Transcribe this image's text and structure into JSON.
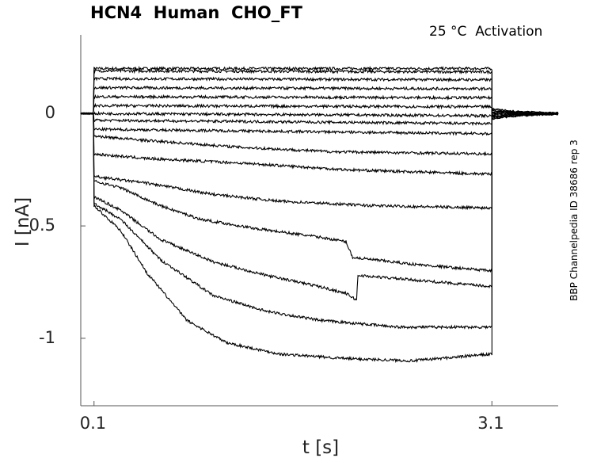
{
  "chart_data": {
    "type": "line",
    "title": "HCN4  Human  CHO_FT",
    "annotation": "25 °C  Activation",
    "side_label": "BBP Channelpedia ID 38686 rep 3",
    "xlabel": "t [s]",
    "ylabel": "I [nA]",
    "xlim": [
      -0.0,
      3.6
    ],
    "ylim": [
      -1.3,
      0.35
    ],
    "xticks": [
      0.1,
      3.1
    ],
    "xtick_labels": [
      "0.1",
      "3.1"
    ],
    "yticks": [
      0,
      -0.5,
      -1
    ],
    "ytick_labels": [
      "0",
      "-0.5",
      "-1"
    ],
    "step_start": 0.1,
    "step_end": 3.1,
    "grid": false,
    "line_color": "#000000",
    "series": [
      {
        "points": [
          [
            0.1,
            0.2
          ],
          [
            3.1,
            0.2
          ]
        ]
      },
      {
        "points": [
          [
            0.1,
            0.19
          ],
          [
            3.1,
            0.185
          ]
        ]
      },
      {
        "points": [
          [
            0.1,
            0.155
          ],
          [
            3.1,
            0.15
          ]
        ]
      },
      {
        "points": [
          [
            0.1,
            0.115
          ],
          [
            3.1,
            0.11
          ]
        ]
      },
      {
        "points": [
          [
            0.1,
            0.075
          ],
          [
            3.1,
            0.07
          ]
        ]
      },
      {
        "points": [
          [
            0.1,
            0.035
          ],
          [
            3.1,
            0.03
          ]
        ]
      },
      {
        "points": [
          [
            0.1,
            0.0
          ],
          [
            3.1,
            -0.01
          ]
        ]
      },
      {
        "points": [
          [
            0.1,
            -0.03
          ],
          [
            3.1,
            -0.045
          ]
        ]
      },
      {
        "points": [
          [
            0.1,
            -0.07
          ],
          [
            3.1,
            -0.09
          ]
        ]
      },
      {
        "points": [
          [
            0.1,
            -0.1
          ],
          [
            0.5,
            -0.12
          ],
          [
            1.2,
            -0.15
          ],
          [
            1.9,
            -0.17
          ],
          [
            3.1,
            -0.18
          ]
        ]
      },
      {
        "points": [
          [
            0.1,
            -0.18
          ],
          [
            0.5,
            -0.2
          ],
          [
            1.2,
            -0.22
          ],
          [
            2.0,
            -0.25
          ],
          [
            3.1,
            -0.27
          ]
        ]
      },
      {
        "points": [
          [
            0.1,
            -0.28
          ],
          [
            0.5,
            -0.31
          ],
          [
            1.0,
            -0.36
          ],
          [
            1.5,
            -0.39
          ],
          [
            2.2,
            -0.41
          ],
          [
            3.1,
            -0.42
          ]
        ]
      },
      {
        "points": [
          [
            0.1,
            -0.3
          ],
          [
            0.3,
            -0.33
          ],
          [
            0.6,
            -0.41
          ],
          [
            0.9,
            -0.47
          ],
          [
            1.3,
            -0.51
          ],
          [
            1.8,
            -0.55
          ],
          [
            2.0,
            -0.57
          ],
          [
            2.05,
            -0.64
          ],
          [
            2.5,
            -0.67
          ],
          [
            3.1,
            -0.7
          ]
        ]
      },
      {
        "points": [
          [
            0.1,
            -0.37
          ],
          [
            0.3,
            -0.43
          ],
          [
            0.6,
            -0.56
          ],
          [
            1.0,
            -0.66
          ],
          [
            1.4,
            -0.72
          ],
          [
            1.8,
            -0.77
          ],
          [
            2.0,
            -0.8
          ],
          [
            2.08,
            -0.83
          ],
          [
            2.09,
            -0.72
          ],
          [
            2.5,
            -0.74
          ],
          [
            3.1,
            -0.77
          ]
        ]
      },
      {
        "points": [
          [
            0.1,
            -0.4
          ],
          [
            0.3,
            -0.47
          ],
          [
            0.6,
            -0.65
          ],
          [
            1.0,
            -0.81
          ],
          [
            1.4,
            -0.88
          ],
          [
            1.8,
            -0.92
          ],
          [
            2.4,
            -0.95
          ],
          [
            3.1,
            -0.95
          ]
        ]
      },
      {
        "points": [
          [
            0.1,
            -0.41
          ],
          [
            0.3,
            -0.52
          ],
          [
            0.5,
            -0.71
          ],
          [
            0.8,
            -0.92
          ],
          [
            1.1,
            -1.02
          ],
          [
            1.5,
            -1.07
          ],
          [
            2.0,
            -1.09
          ],
          [
            2.5,
            -1.1
          ],
          [
            3.1,
            -1.07
          ]
        ]
      }
    ]
  }
}
